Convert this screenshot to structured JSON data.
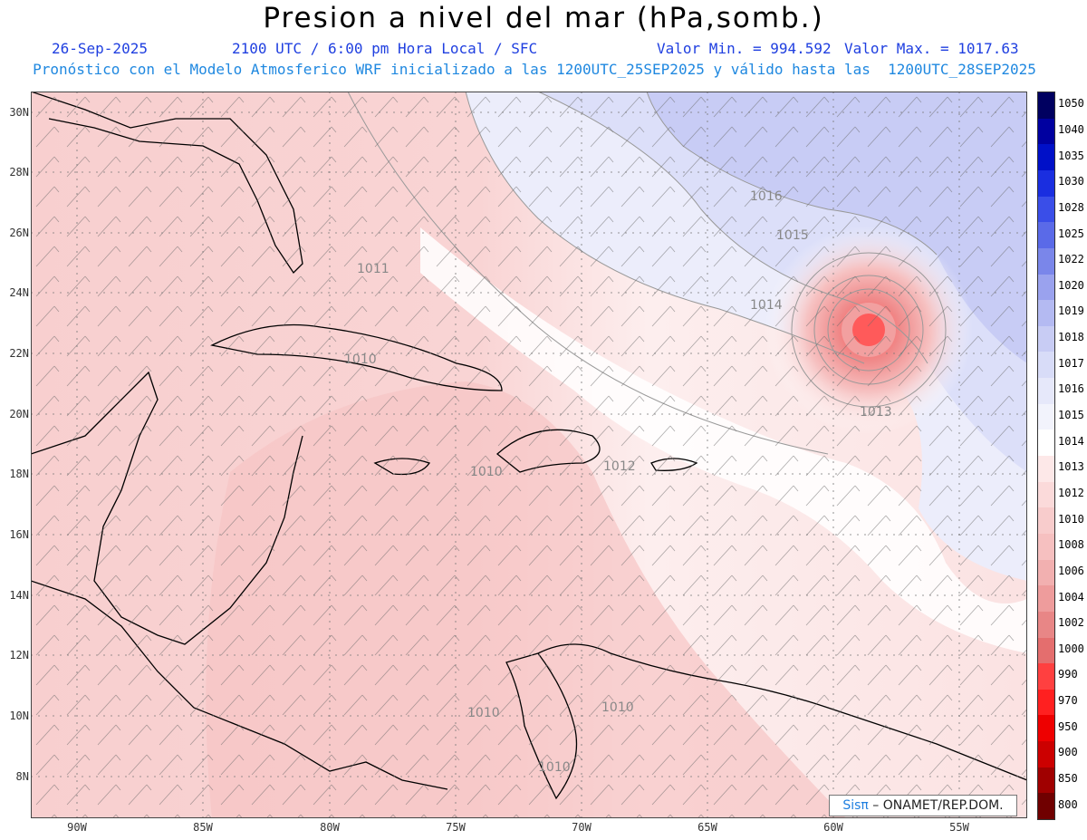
{
  "header": {
    "title": "Presion a nivel del mar (hPa,somb.)",
    "date": "26-Sep-2025",
    "time": "2100 UTC / 6:00 pm Hora Local / SFC",
    "min_value": "Valor Min. = 994.592",
    "max_value": "Valor Max. = 1017.63",
    "model_note": "Pronóstico con el Modelo Atmosferico WRF inicializado a las 1200UTC_25SEP2025 y válido hasta las  1200UTC_28SEP2025"
  },
  "lat_labels": [
    "30N",
    "28N",
    "26N",
    "24N",
    "22N",
    "20N",
    "18N",
    "16N",
    "14N",
    "12N",
    "10N",
    "8N"
  ],
  "lon_labels": [
    "90W",
    "85W",
    "80W",
    "75W",
    "70W",
    "65W",
    "60W",
    "55W"
  ],
  "contour_labels": [
    "1016",
    "1015",
    "1014",
    "1013",
    "1012",
    "1011",
    "1010",
    "1010",
    "1010",
    "1010",
    "1010"
  ],
  "legend": {
    "levels": [
      "1050",
      "1040",
      "1035",
      "1030",
      "1028",
      "1025",
      "1022",
      "1020",
      "1019",
      "1018",
      "1017",
      "1016",
      "1015",
      "1014",
      "1013",
      "1012",
      "1010",
      "1008",
      "1006",
      "1004",
      "1002",
      "1000",
      "990",
      "970",
      "950",
      "900",
      "850",
      "800"
    ],
    "colors": [
      "#000060",
      "#0000a0",
      "#0010c8",
      "#1a2ee0",
      "#3a4ee8",
      "#5a6ae8",
      "#7a86ea",
      "#9aa2ee",
      "#b4baf2",
      "#c8ccf4",
      "#d8dcf8",
      "#e6e8fa",
      "#f2f3fc",
      "#ffffff",
      "#fde8e8",
      "#fbdada",
      "#f8cccc",
      "#f6c0c0",
      "#f2b0b0",
      "#ee9c9c",
      "#e88686",
      "#e46e6e",
      "#ff4040",
      "#ff2020",
      "#ee0000",
      "#cc0000",
      "#a00000",
      "#700000"
    ]
  },
  "credit": {
    "brand": "Sisπ",
    "text": " – ONAMET/REP.DOM."
  }
}
